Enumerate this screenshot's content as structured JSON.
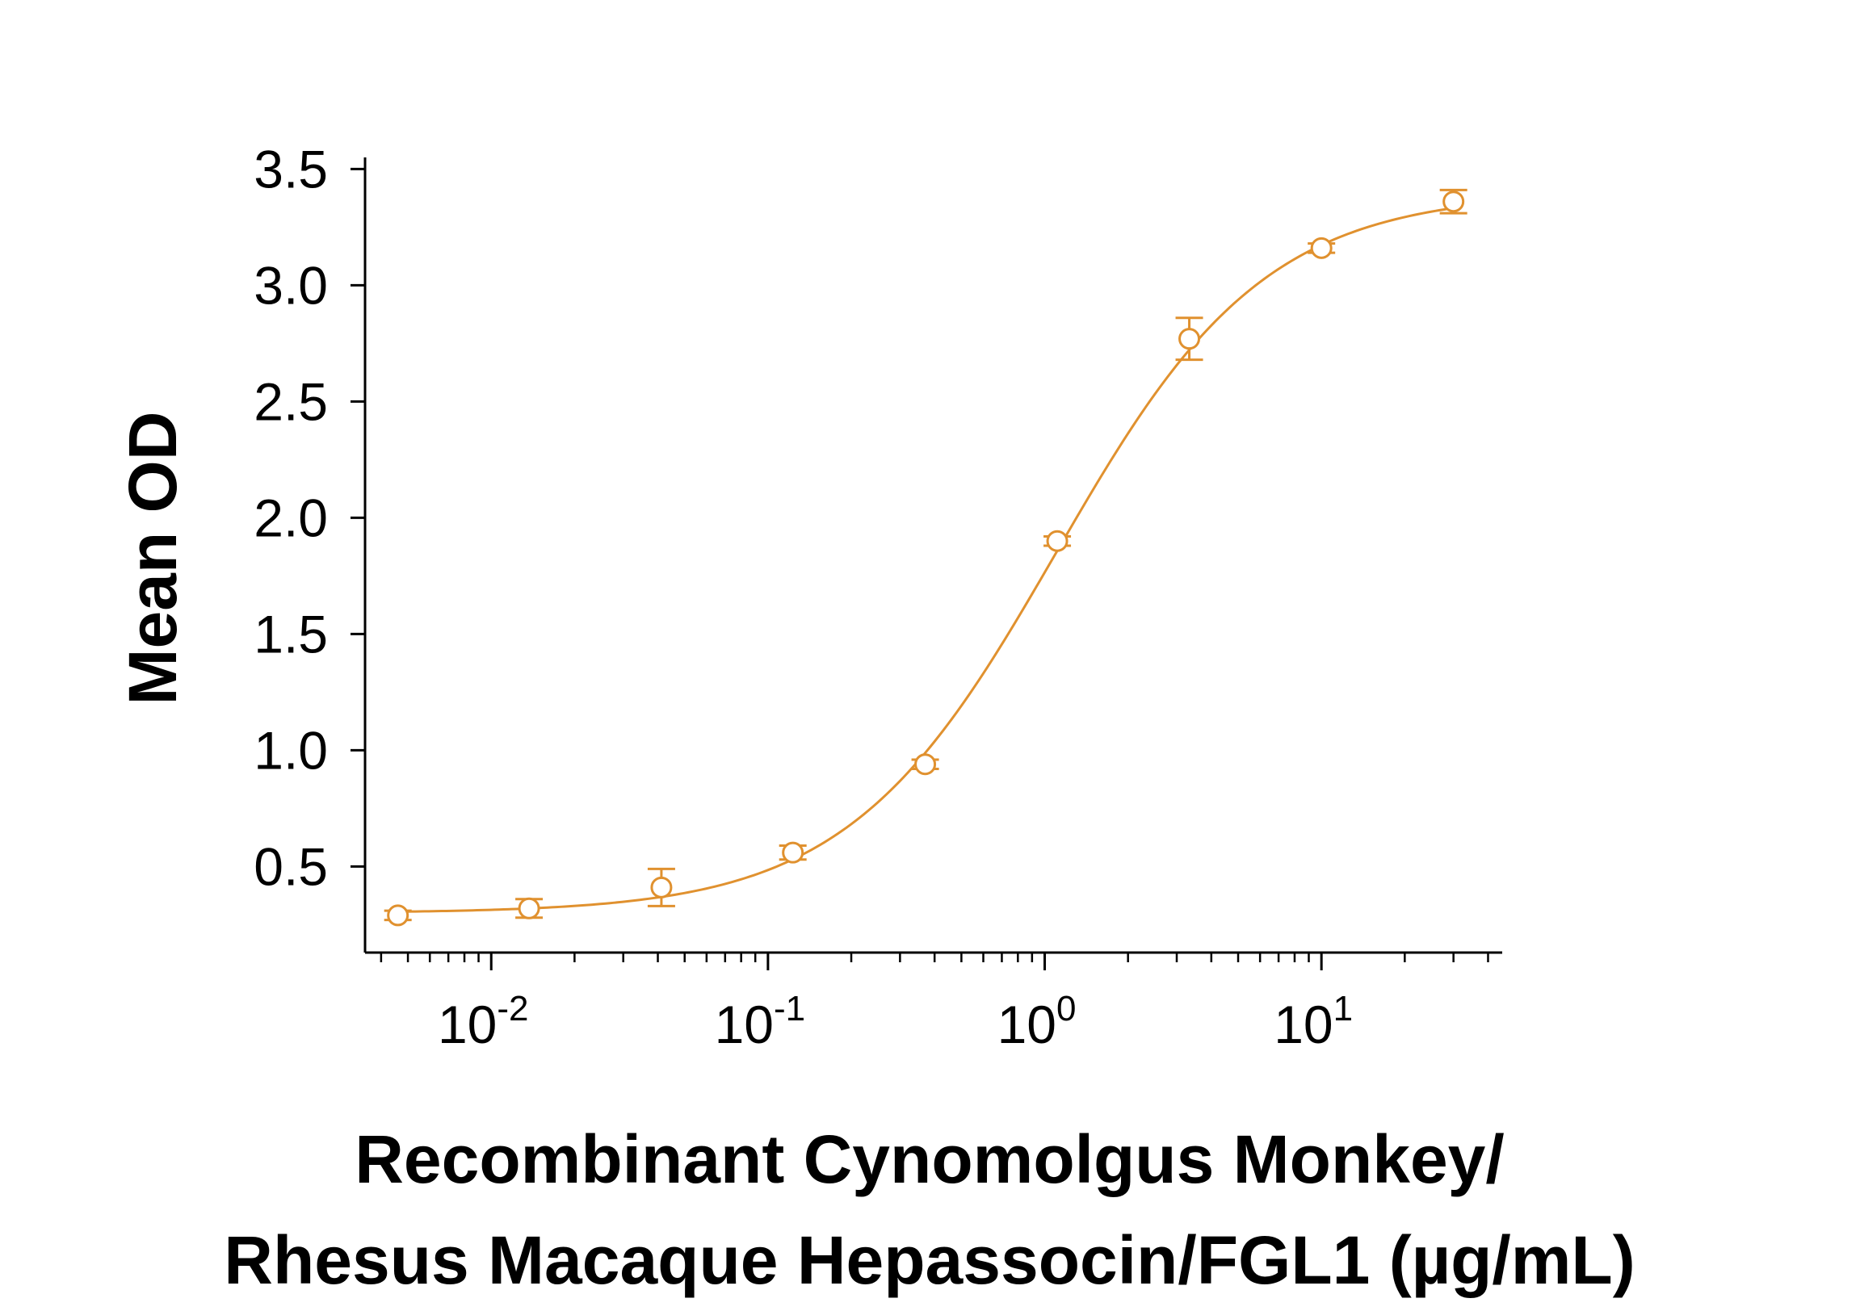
{
  "chart_data": {
    "type": "scatter",
    "title": "",
    "xlabel_lines": [
      "Recombinant Cynomolgus Monkey/",
      "Rhesus Macaque Hepassocin/FGL1 (µg/mL)"
    ],
    "ylabel": "Mean OD",
    "x_scale": "log",
    "xlim": [
      0.0035,
      45
    ],
    "ylim": [
      0.13,
      3.55
    ],
    "x_ticks": [
      {
        "value": 0.01,
        "base": "10",
        "exp": "-2"
      },
      {
        "value": 0.1,
        "base": "10",
        "exp": "-1"
      },
      {
        "value": 1,
        "base": "10",
        "exp": "0"
      },
      {
        "value": 10,
        "base": "10",
        "exp": "1"
      }
    ],
    "y_ticks": [
      {
        "value": 0.5,
        "label": "0.5"
      },
      {
        "value": 1.0,
        "label": "1.0"
      },
      {
        "value": 1.5,
        "label": "1.5"
      },
      {
        "value": 2.0,
        "label": "2.0"
      },
      {
        "value": 2.5,
        "label": "2.5"
      },
      {
        "value": 3.0,
        "label": "3.0"
      },
      {
        "value": 3.5,
        "label": "3.5"
      }
    ],
    "grid": false,
    "legend": "none",
    "series": [
      {
        "color": "#E0912F",
        "x": [
          0.0046,
          0.0137,
          0.0412,
          0.123,
          0.37,
          1.11,
          3.33,
          10,
          30
        ],
        "y": [
          0.29,
          0.32,
          0.41,
          0.56,
          0.94,
          1.9,
          2.77,
          3.16,
          3.36
        ],
        "err": [
          0.02,
          0.04,
          0.08,
          0.03,
          0.02,
          0.02,
          0.09,
          0.02,
          0.05
        ],
        "fit": {
          "model": "4PL",
          "bottom": 0.3,
          "top": 3.4,
          "ec50": 1.1,
          "hill": 1.15
        }
      }
    ]
  }
}
